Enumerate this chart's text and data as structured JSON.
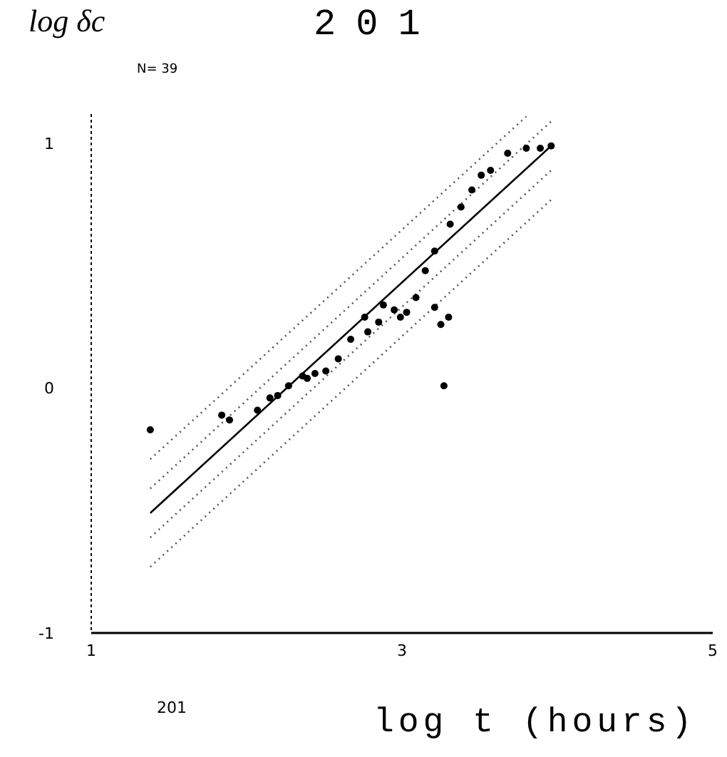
{
  "chart_data": {
    "type": "scatter",
    "title": "201",
    "ylabel": "log δc",
    "xlabel": "log t (hours)",
    "annotations": [
      "N= 39",
      "201"
    ],
    "xlim": [
      1,
      5
    ],
    "xticks": [
      1,
      3,
      5
    ],
    "ylim": [
      -1,
      1.12
    ],
    "yticks": [
      -1,
      0,
      1
    ],
    "grid": false,
    "marker": "circle",
    "series": [
      {
        "color": "#000000",
        "x": [
          1.38,
          1.84,
          1.89,
          2.07,
          2.15,
          2.2,
          2.27,
          2.36,
          2.39,
          2.44,
          2.51,
          2.59,
          2.67,
          2.78,
          2.76,
          2.85,
          2.88,
          2.95,
          2.99,
          3.03,
          3.09,
          3.21,
          3.25,
          3.3,
          3.27,
          3.15,
          3.21,
          3.31,
          3.38,
          3.45,
          3.51,
          3.57,
          3.68,
          3.8,
          3.89,
          3.96
        ],
        "values": [
          -0.17,
          -0.11,
          -0.13,
          -0.09,
          -0.04,
          -0.03,
          0.01,
          0.05,
          0.04,
          0.06,
          0.07,
          0.12,
          0.2,
          0.23,
          0.29,
          0.27,
          0.34,
          0.32,
          0.29,
          0.31,
          0.37,
          0.33,
          0.26,
          0.29,
          0.01,
          0.48,
          0.56,
          0.67,
          0.74,
          0.81,
          0.87,
          0.89,
          0.96,
          0.98,
          0.98,
          0.99
        ]
      },
      {
        "type": "line",
        "color": "#000000",
        "line_style": "solid",
        "marker": "none",
        "x": [
          1.38,
          3.96
        ],
        "values": [
          -0.51,
          0.99
        ]
      },
      {
        "type": "line",
        "color": "#555555",
        "line_style": "dotted",
        "marker": "none",
        "x": [
          1.38,
          3.96
        ],
        "values": [
          -0.41,
          1.09
        ]
      },
      {
        "type": "line",
        "color": "#555555",
        "line_style": "dotted",
        "marker": "none",
        "x": [
          1.38,
          3.96
        ],
        "values": [
          -0.61,
          0.89
        ]
      },
      {
        "type": "line",
        "color": "#555555",
        "line_style": "dotted",
        "marker": "none",
        "x": [
          1.38,
          3.8
        ],
        "values": [
          -0.29,
          1.11
        ]
      },
      {
        "type": "line",
        "color": "#555555",
        "line_style": "dotted",
        "marker": "none",
        "x": [
          1.38,
          3.96
        ],
        "values": [
          -0.73,
          0.77
        ]
      }
    ]
  }
}
